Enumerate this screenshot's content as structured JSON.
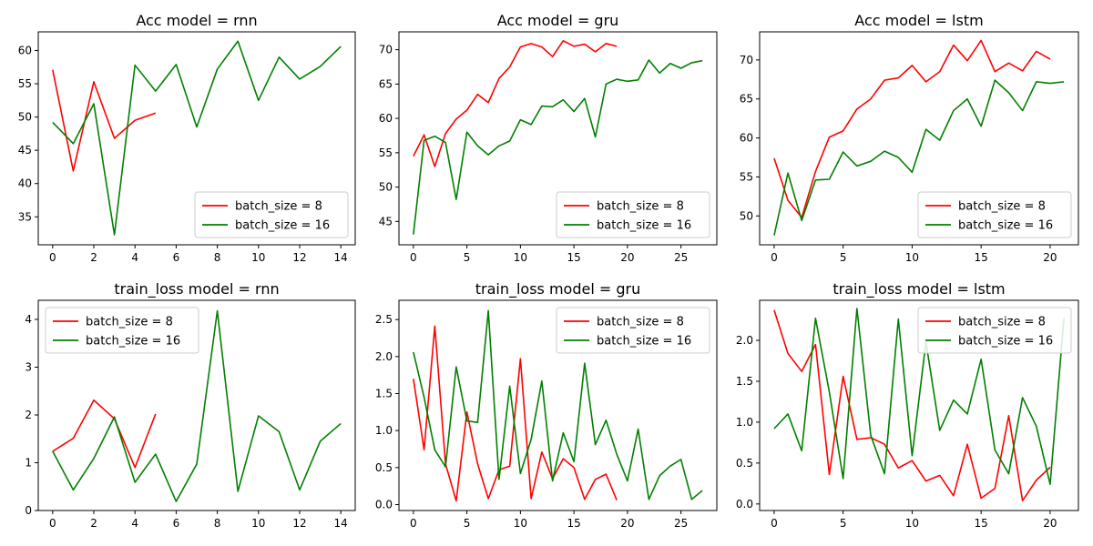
{
  "chart_data": [
    {
      "type": "line",
      "title": "Acc model = rnn",
      "xlim": [
        -0.7,
        14.7
      ],
      "ylim": [
        30.8,
        62.8
      ],
      "xticks": [
        0,
        2,
        4,
        6,
        8,
        10,
        12,
        14
      ],
      "yticks": [
        35,
        40,
        45,
        50,
        55,
        60
      ],
      "legend_position": "lower-right",
      "series": [
        {
          "name": "batch_size = 8",
          "color": "#ff0000",
          "x": [
            0,
            1,
            2,
            3,
            4,
            5
          ],
          "y": [
            57.1,
            41.9,
            55.3,
            46.8,
            49.5,
            50.6
          ]
        },
        {
          "name": "batch_size = 16",
          "color": "#008000",
          "x": [
            0,
            1,
            2,
            3,
            4,
            5,
            6,
            7,
            8,
            9,
            10,
            11,
            12,
            13,
            14
          ],
          "y": [
            49.2,
            46.0,
            52.0,
            32.3,
            57.8,
            53.9,
            57.9,
            48.5,
            57.2,
            61.4,
            52.5,
            59.0,
            55.7,
            57.6,
            60.6
          ]
        }
      ]
    },
    {
      "type": "line",
      "title": "Acc model = gru",
      "xlim": [
        -1.35,
        28.35
      ],
      "ylim": [
        41.6,
        72.6
      ],
      "xticks": [
        0,
        5,
        10,
        15,
        20,
        25
      ],
      "yticks": [
        45,
        50,
        55,
        60,
        65,
        70
      ],
      "legend_position": "lower-right",
      "series": [
        {
          "name": "batch_size = 8",
          "color": "#ff0000",
          "x": [
            0,
            1,
            2,
            3,
            4,
            5,
            6,
            7,
            8,
            9,
            10,
            11,
            12,
            13,
            14,
            15,
            16,
            17,
            18,
            19
          ],
          "y": [
            54.5,
            57.6,
            53.0,
            57.8,
            59.9,
            61.2,
            63.5,
            62.3,
            65.8,
            67.5,
            70.4,
            70.9,
            70.4,
            69.0,
            71.3,
            70.5,
            70.8,
            69.7,
            70.9,
            70.5
          ]
        },
        {
          "name": "batch_size = 16",
          "color": "#008000",
          "x": [
            0,
            1,
            2,
            3,
            4,
            5,
            6,
            7,
            8,
            9,
            10,
            11,
            12,
            13,
            14,
            15,
            16,
            17,
            18,
            19,
            20,
            21,
            22,
            23,
            24,
            25,
            26,
            27
          ],
          "y": [
            43.1,
            56.8,
            57.4,
            56.5,
            48.2,
            58.0,
            56.0,
            54.7,
            56.0,
            56.7,
            59.8,
            59.1,
            61.8,
            61.7,
            62.7,
            61.0,
            62.9,
            57.3,
            65.0,
            65.7,
            65.4,
            65.6,
            68.5,
            66.6,
            68.0,
            67.3,
            68.1,
            68.4
          ]
        }
      ]
    },
    {
      "type": "line",
      "title": "Acc model = lstm",
      "xlim": [
        -1.05,
        22.05
      ],
      "ylim": [
        46.3,
        73.6
      ],
      "xticks": [
        0,
        5,
        10,
        15,
        20
      ],
      "yticks": [
        50,
        55,
        60,
        65,
        70
      ],
      "legend_position": "lower-right",
      "series": [
        {
          "name": "batch_size = 8",
          "color": "#ff0000",
          "x": [
            0,
            1,
            2,
            3,
            4,
            5,
            6,
            7,
            8,
            9,
            10,
            11,
            12,
            13,
            14,
            15,
            16,
            17,
            18,
            19,
            20
          ],
          "y": [
            57.4,
            52.0,
            49.8,
            55.7,
            60.1,
            60.9,
            63.7,
            65.0,
            67.4,
            67.7,
            69.3,
            67.2,
            68.5,
            71.9,
            69.9,
            72.5,
            68.5,
            69.6,
            68.6,
            71.1,
            70.1
          ]
        },
        {
          "name": "batch_size = 16",
          "color": "#008000",
          "x": [
            0,
            1,
            2,
            3,
            4,
            5,
            6,
            7,
            8,
            9,
            10,
            11,
            12,
            13,
            14,
            15,
            16,
            17,
            18,
            19,
            20,
            21
          ],
          "y": [
            47.5,
            55.5,
            49.4,
            54.6,
            54.7,
            58.2,
            56.4,
            57.0,
            58.3,
            57.5,
            55.6,
            61.1,
            59.7,
            63.5,
            65.0,
            61.5,
            67.4,
            65.8,
            63.5,
            67.2,
            67.0,
            67.2
          ]
        }
      ]
    },
    {
      "type": "line",
      "title": "train_loss model = rnn",
      "xlim": [
        -0.7,
        14.7
      ],
      "ylim": [
        0,
        4.4
      ],
      "xticks": [
        0,
        2,
        4,
        6,
        8,
        10,
        12,
        14
      ],
      "yticks": [
        0,
        1,
        2,
        3,
        4
      ],
      "legend_position": "upper-left",
      "series": [
        {
          "name": "batch_size = 8",
          "color": "#ff0000",
          "x": [
            0,
            1,
            2,
            3,
            4,
            5
          ],
          "y": [
            1.24,
            1.51,
            2.31,
            1.92,
            0.9,
            2.02
          ]
        },
        {
          "name": "batch_size = 16",
          "color": "#008000",
          "x": [
            0,
            1,
            2,
            3,
            4,
            5,
            6,
            7,
            8,
            9,
            10,
            11,
            12,
            13,
            14
          ],
          "y": [
            1.24,
            0.43,
            1.09,
            1.96,
            0.59,
            1.18,
            0.19,
            0.97,
            4.18,
            0.4,
            1.98,
            1.65,
            0.43,
            1.45,
            1.82
          ]
        }
      ]
    },
    {
      "type": "line",
      "title": "train_loss model = gru",
      "xlim": [
        -1.35,
        28.35
      ],
      "ylim": [
        -0.08,
        2.76
      ],
      "xticks": [
        0,
        5,
        10,
        15,
        20,
        25
      ],
      "yticks": [
        0.0,
        0.5,
        1.0,
        1.5,
        2.0,
        2.5
      ],
      "ytick_labels": [
        "0.0",
        "0.5",
        "1.0",
        "1.5",
        "2.0",
        "2.5"
      ],
      "legend_position": "upper-right",
      "series": [
        {
          "name": "batch_size = 8",
          "color": "#ff0000",
          "x": [
            0,
            1,
            2,
            3,
            4,
            5,
            6,
            7,
            8,
            9,
            10,
            11,
            12,
            13,
            14,
            15,
            16,
            17,
            18,
            19
          ],
          "y": [
            1.7,
            0.74,
            2.41,
            0.55,
            0.05,
            1.25,
            0.55,
            0.08,
            0.47,
            0.52,
            1.97,
            0.08,
            0.71,
            0.35,
            0.62,
            0.5,
            0.07,
            0.34,
            0.41,
            0.06
          ]
        },
        {
          "name": "batch_size = 16",
          "color": "#008000",
          "x": [
            0,
            1,
            2,
            3,
            4,
            5,
            6,
            7,
            8,
            9,
            10,
            11,
            12,
            13,
            14,
            15,
            16,
            17,
            18,
            19,
            20,
            21,
            22,
            23,
            24,
            25,
            26,
            27
          ],
          "y": [
            2.06,
            1.45,
            0.74,
            0.51,
            1.86,
            1.13,
            1.11,
            2.62,
            0.34,
            1.6,
            0.42,
            0.88,
            1.67,
            0.32,
            0.97,
            0.58,
            1.91,
            0.81,
            1.14,
            0.68,
            0.32,
            1.02,
            0.07,
            0.39,
            0.52,
            0.61,
            0.07,
            0.19
          ]
        }
      ]
    },
    {
      "type": "line",
      "title": "train_loss model = lstm",
      "xlim": [
        -1.05,
        22.05
      ],
      "ylim": [
        -0.08,
        2.49
      ],
      "xticks": [
        0,
        5,
        10,
        15,
        20
      ],
      "yticks": [
        0.0,
        0.5,
        1.0,
        1.5,
        2.0
      ],
      "ytick_labels": [
        "0.0",
        "0.5",
        "1.0",
        "1.5",
        "2.0"
      ],
      "legend_position": "upper-right",
      "series": [
        {
          "name": "batch_size = 8",
          "color": "#ff0000",
          "x": [
            0,
            1,
            2,
            3,
            4,
            5,
            6,
            7,
            8,
            9,
            10,
            11,
            12,
            13,
            14,
            15,
            16,
            17,
            18,
            19,
            20
          ],
          "y": [
            2.37,
            1.84,
            1.62,
            1.95,
            0.36,
            1.56,
            0.79,
            0.81,
            0.73,
            0.44,
            0.53,
            0.28,
            0.35,
            0.1,
            0.73,
            0.07,
            0.19,
            1.08,
            0.04,
            0.29,
            0.45
          ]
        },
        {
          "name": "batch_size = 16",
          "color": "#008000",
          "x": [
            0,
            1,
            2,
            3,
            4,
            5,
            6,
            7,
            8,
            9,
            10,
            11,
            12,
            13,
            14,
            15,
            16,
            17,
            18,
            19,
            20,
            21
          ],
          "y": [
            0.92,
            1.1,
            0.65,
            2.27,
            1.37,
            0.31,
            2.39,
            0.84,
            0.37,
            2.26,
            0.59,
            1.98,
            0.9,
            1.27,
            1.1,
            1.77,
            0.66,
            0.37,
            1.3,
            0.95,
            0.24,
            2.27
          ]
        }
      ]
    }
  ]
}
